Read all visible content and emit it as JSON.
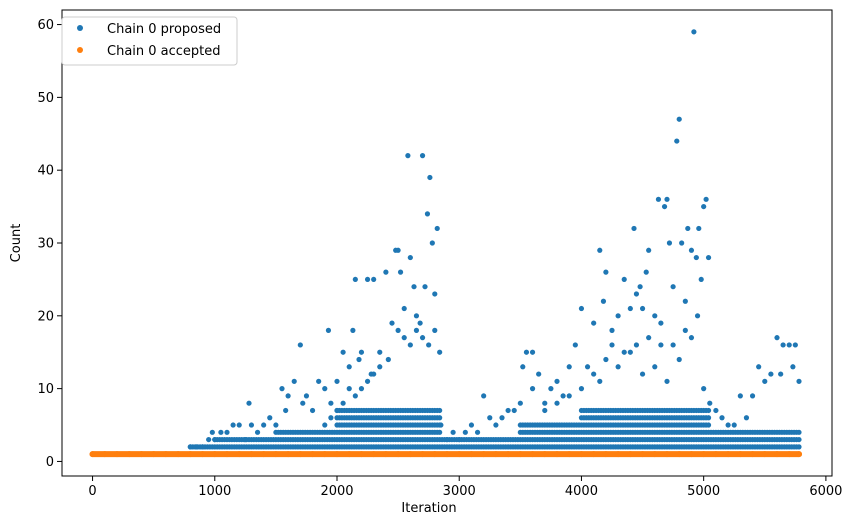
{
  "chart_data": {
    "type": "scatter",
    "xlabel": "Iteration",
    "ylabel": "Count",
    "xlim": [
      -250,
      6050
    ],
    "ylim": [
      -2,
      62
    ],
    "x_ticks": [
      0,
      1000,
      2000,
      3000,
      4000,
      5000,
      6000
    ],
    "y_ticks": [
      0,
      10,
      20,
      30,
      40,
      50,
      60
    ],
    "x_tick_labels": [
      "0",
      "1000",
      "2000",
      "3000",
      "4000",
      "5000",
      "6000"
    ],
    "y_tick_labels": [
      "0",
      "10",
      "20",
      "30",
      "40",
      "50",
      "60"
    ],
    "grid": false,
    "legend_position": "top-left",
    "series": [
      {
        "name": "Chain 0 proposed",
        "color": "#1f77b4",
        "points": [
          [
            0,
            1
          ],
          [
            100,
            1
          ],
          [
            200,
            1
          ],
          [
            300,
            1
          ],
          [
            400,
            1
          ],
          [
            500,
            1
          ],
          [
            600,
            1
          ],
          [
            700,
            1
          ],
          [
            780,
            1
          ],
          [
            800,
            2
          ],
          [
            850,
            2
          ],
          [
            900,
            2
          ],
          [
            950,
            3
          ],
          [
            980,
            4
          ],
          [
            1000,
            3
          ],
          [
            1050,
            4
          ],
          [
            1100,
            4
          ],
          [
            1150,
            5
          ],
          [
            1200,
            5
          ],
          [
            1250,
            3
          ],
          [
            1280,
            8
          ],
          [
            1300,
            5
          ],
          [
            1350,
            4
          ],
          [
            1400,
            5
          ],
          [
            1450,
            6
          ],
          [
            1500,
            5
          ],
          [
            1550,
            10
          ],
          [
            1580,
            7
          ],
          [
            1600,
            9
          ],
          [
            1650,
            11
          ],
          [
            1700,
            16
          ],
          [
            1720,
            8
          ],
          [
            1750,
            9
          ],
          [
            1800,
            7
          ],
          [
            1850,
            11
          ],
          [
            1900,
            10
          ],
          [
            1930,
            18
          ],
          [
            1950,
            8
          ],
          [
            2000,
            11
          ],
          [
            2050,
            15
          ],
          [
            2100,
            13
          ],
          [
            2130,
            18
          ],
          [
            2150,
            25
          ],
          [
            2180,
            14
          ],
          [
            2200,
            15
          ],
          [
            2250,
            25
          ],
          [
            2280,
            12
          ],
          [
            2300,
            25
          ],
          [
            2350,
            15
          ],
          [
            2400,
            26
          ],
          [
            2420,
            14
          ],
          [
            2450,
            19
          ],
          [
            2480,
            29
          ],
          [
            2500,
            29
          ],
          [
            2520,
            26
          ],
          [
            2550,
            21
          ],
          [
            2580,
            42
          ],
          [
            2600,
            28
          ],
          [
            2630,
            24
          ],
          [
            2650,
            20
          ],
          [
            2680,
            19
          ],
          [
            2700,
            42
          ],
          [
            2720,
            24
          ],
          [
            2740,
            34
          ],
          [
            2760,
            39
          ],
          [
            2780,
            30
          ],
          [
            2800,
            23
          ],
          [
            2820,
            32
          ],
          [
            2840,
            15
          ],
          [
            2500,
            18
          ],
          [
            2550,
            17
          ],
          [
            2600,
            16
          ],
          [
            2650,
            18
          ],
          [
            2700,
            17
          ],
          [
            2750,
            16
          ],
          [
            2800,
            18
          ],
          [
            2350,
            13
          ],
          [
            2300,
            12
          ],
          [
            2250,
            11
          ],
          [
            2200,
            10
          ],
          [
            2150,
            9
          ],
          [
            2100,
            10
          ],
          [
            2050,
            8
          ],
          [
            2000,
            7
          ],
          [
            1950,
            6
          ],
          [
            1900,
            5
          ],
          [
            2850,
            5
          ],
          [
            2900,
            3
          ],
          [
            2950,
            4
          ],
          [
            3000,
            3
          ],
          [
            3050,
            4
          ],
          [
            3100,
            5
          ],
          [
            3150,
            4
          ],
          [
            3200,
            9
          ],
          [
            3250,
            6
          ],
          [
            3300,
            5
          ],
          [
            3350,
            6
          ],
          [
            3400,
            7
          ],
          [
            3450,
            7
          ],
          [
            3500,
            8
          ],
          [
            3520,
            13
          ],
          [
            3550,
            15
          ],
          [
            3600,
            15
          ],
          [
            3650,
            12
          ],
          [
            3700,
            8
          ],
          [
            3750,
            10
          ],
          [
            3800,
            11
          ],
          [
            3850,
            9
          ],
          [
            3900,
            13
          ],
          [
            3950,
            16
          ],
          [
            4000,
            21
          ],
          [
            4050,
            13
          ],
          [
            4100,
            19
          ],
          [
            4150,
            29
          ],
          [
            4180,
            22
          ],
          [
            4200,
            26
          ],
          [
            4250,
            18
          ],
          [
            4300,
            20
          ],
          [
            4350,
            25
          ],
          [
            4400,
            21
          ],
          [
            4430,
            32
          ],
          [
            4450,
            23
          ],
          [
            4480,
            24
          ],
          [
            4500,
            21
          ],
          [
            4530,
            26
          ],
          [
            4550,
            29
          ],
          [
            4600,
            20
          ],
          [
            4630,
            36
          ],
          [
            4650,
            16
          ],
          [
            4680,
            35
          ],
          [
            4700,
            36
          ],
          [
            4720,
            30
          ],
          [
            4750,
            24
          ],
          [
            4780,
            44
          ],
          [
            4800,
            47
          ],
          [
            4820,
            30
          ],
          [
            4850,
            22
          ],
          [
            4870,
            32
          ],
          [
            4900,
            29
          ],
          [
            4920,
            59
          ],
          [
            4940,
            28
          ],
          [
            4960,
            32
          ],
          [
            4980,
            25
          ],
          [
            5000,
            35
          ],
          [
            5020,
            36
          ],
          [
            5040,
            28
          ],
          [
            5050,
            8
          ],
          [
            5100,
            7
          ],
          [
            5150,
            6
          ],
          [
            5200,
            5
          ],
          [
            5250,
            5
          ],
          [
            5300,
            9
          ],
          [
            5350,
            6
          ],
          [
            5400,
            9
          ],
          [
            5450,
            13
          ],
          [
            5500,
            11
          ],
          [
            5550,
            12
          ],
          [
            5600,
            17
          ],
          [
            5630,
            12
          ],
          [
            5650,
            16
          ],
          [
            5700,
            16
          ],
          [
            5730,
            13
          ],
          [
            5750,
            16
          ],
          [
            5780,
            11
          ],
          [
            3600,
            10
          ],
          [
            3700,
            7
          ],
          [
            3800,
            8
          ],
          [
            3900,
            9
          ],
          [
            4000,
            10
          ],
          [
            4100,
            12
          ],
          [
            4200,
            14
          ],
          [
            4300,
            13
          ],
          [
            4400,
            15
          ],
          [
            4500,
            12
          ],
          [
            4600,
            13
          ],
          [
            4700,
            11
          ],
          [
            4800,
            14
          ],
          [
            4900,
            17
          ],
          [
            5000,
            10
          ],
          [
            4950,
            20
          ],
          [
            4850,
            18
          ],
          [
            4750,
            16
          ],
          [
            4650,
            19
          ],
          [
            4550,
            17
          ],
          [
            4450,
            16
          ],
          [
            4350,
            15
          ],
          [
            4250,
            16
          ],
          [
            4150,
            11
          ]
        ]
      },
      {
        "name": "Chain 0 accepted",
        "color": "#ff7f0e",
        "points": [
          [
            0,
            1
          ],
          [
            100,
            1
          ],
          [
            200,
            1
          ],
          [
            300,
            1
          ],
          [
            400,
            1
          ],
          [
            500,
            1
          ],
          [
            600,
            1
          ],
          [
            700,
            1
          ],
          [
            800,
            1
          ],
          [
            900,
            1
          ],
          [
            1000,
            1
          ],
          [
            1100,
            1
          ],
          [
            1200,
            1
          ],
          [
            1300,
            1
          ],
          [
            1400,
            1
          ],
          [
            1500,
            1
          ],
          [
            1600,
            1
          ],
          [
            1700,
            1
          ],
          [
            1800,
            1
          ],
          [
            1900,
            1
          ],
          [
            2000,
            1
          ],
          [
            2100,
            1
          ],
          [
            2200,
            1
          ],
          [
            2300,
            1
          ],
          [
            2400,
            1
          ],
          [
            2500,
            1
          ],
          [
            2600,
            1
          ],
          [
            2700,
            1
          ],
          [
            2800,
            1
          ],
          [
            2900,
            1
          ],
          [
            3000,
            1
          ],
          [
            3100,
            1
          ],
          [
            3200,
            1
          ],
          [
            3300,
            1
          ],
          [
            3400,
            1
          ],
          [
            3500,
            1
          ],
          [
            3600,
            1
          ],
          [
            3700,
            1
          ],
          [
            3800,
            1
          ],
          [
            3900,
            1
          ],
          [
            4000,
            1
          ],
          [
            4100,
            1
          ],
          [
            4200,
            1
          ],
          [
            4300,
            1
          ],
          [
            4400,
            1
          ],
          [
            4500,
            1
          ],
          [
            4600,
            1
          ],
          [
            4700,
            1
          ],
          [
            4800,
            1
          ],
          [
            4900,
            1
          ],
          [
            5000,
            1
          ],
          [
            5100,
            1
          ],
          [
            5200,
            1
          ],
          [
            5300,
            1
          ],
          [
            5400,
            1
          ],
          [
            5500,
            1
          ],
          [
            5600,
            1
          ],
          [
            5700,
            1
          ],
          [
            5780,
            1
          ]
        ]
      }
    ]
  }
}
